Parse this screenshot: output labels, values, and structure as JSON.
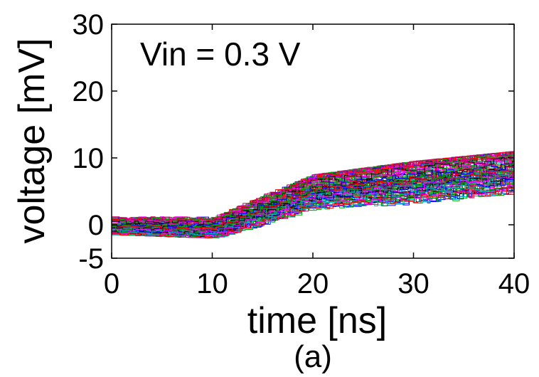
{
  "chart_data": {
    "type": "line",
    "annotation": "Vin = 0.3 V",
    "xlabel": "time [ns]",
    "ylabel": "voltage [mV]",
    "caption": "(a)",
    "xlim": [
      0,
      40
    ],
    "ylim": [
      -5,
      30
    ],
    "x_ticks": [
      0,
      10,
      20,
      30,
      40
    ],
    "y_ticks": [
      -5,
      0,
      10,
      20,
      30
    ],
    "x_tick_labels": [
      "0",
      "10",
      "20",
      "30",
      "40"
    ],
    "y_tick_labels": [
      "-5",
      "0",
      "10",
      "20",
      "30"
    ],
    "grid": false,
    "legend": "none",
    "series_count": 100,
    "series_colors": [
      "#ff0000",
      "#00aa00",
      "#0000ff",
      "#ff00ff",
      "#00bbbb",
      "#000000",
      "#cc0066",
      "#1f8f1f"
    ],
    "envelope": {
      "x": [
        0,
        10,
        20,
        30,
        40
      ],
      "mean_mV": [
        -0.3,
        -0.6,
        5.0,
        6.5,
        8.0
      ],
      "min_mV": [
        -1.5,
        -2.0,
        2.0,
        2.5,
        4.0
      ],
      "max_mV": [
        1.5,
        1.5,
        7.5,
        9.5,
        11.0
      ]
    }
  }
}
